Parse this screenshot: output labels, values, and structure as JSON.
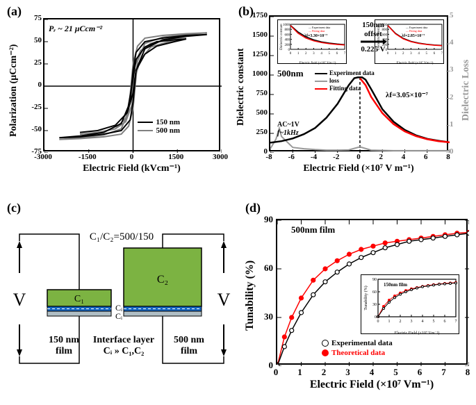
{
  "panel_a": {
    "label": "(a)",
    "xlabel": "Electric Field (kVcm⁻¹)",
    "ylabel": "Polarization (μCcm⁻²)",
    "xlim": [
      -3000,
      3000
    ],
    "xticks": [
      -3000,
      -1500,
      0,
      1500,
      3000
    ],
    "ylim": [
      -75,
      75
    ],
    "yticks": [
      -75,
      -50,
      -25,
      0,
      25,
      50,
      75
    ],
    "anno": "Pᵣ ~ 21 μCcm⁻²",
    "legend": [
      "150 nm",
      "500 nm"
    ],
    "colors": {
      "150nm": "#000000",
      "500nm": "#808080"
    },
    "loops": {
      "150nm_outer": [
        [
          -2500,
          -58
        ],
        [
          -1800,
          -56
        ],
        [
          -1000,
          -52
        ],
        [
          -400,
          -42
        ],
        [
          -100,
          -18
        ],
        [
          0,
          18
        ],
        [
          100,
          38
        ],
        [
          400,
          50
        ],
        [
          1000,
          54
        ],
        [
          1800,
          57
        ],
        [
          2500,
          58
        ],
        [
          2500,
          58
        ],
        [
          1800,
          56
        ],
        [
          1000,
          52
        ],
        [
          400,
          42
        ],
        [
          100,
          18
        ],
        [
          0,
          -18
        ],
        [
          -100,
          -38
        ],
        [
          -400,
          -50
        ],
        [
          -1000,
          -54
        ],
        [
          -1800,
          -57
        ],
        [
          -2500,
          -58
        ]
      ],
      "150nm_inner": [
        [
          -1800,
          -52
        ],
        [
          -1200,
          -50
        ],
        [
          -600,
          -44
        ],
        [
          -200,
          -30
        ],
        [
          0,
          8
        ],
        [
          100,
          30
        ],
        [
          400,
          44
        ],
        [
          800,
          50
        ],
        [
          1400,
          52
        ],
        [
          1800,
          53
        ],
        [
          1400,
          50
        ],
        [
          800,
          45
        ],
        [
          400,
          36
        ],
        [
          100,
          18
        ],
        [
          0,
          -8
        ],
        [
          -200,
          -30
        ],
        [
          -600,
          -44
        ],
        [
          -1200,
          -50
        ],
        [
          -1800,
          -52
        ]
      ],
      "500nm_outer": [
        [
          -2500,
          -60
        ],
        [
          -1800,
          -58
        ],
        [
          -1000,
          -55
        ],
        [
          -400,
          -48
        ],
        [
          -150,
          -28
        ],
        [
          0,
          25
        ],
        [
          150,
          45
        ],
        [
          400,
          54
        ],
        [
          1000,
          57
        ],
        [
          1800,
          59
        ],
        [
          2500,
          60
        ],
        [
          1800,
          58
        ],
        [
          1000,
          55
        ],
        [
          400,
          48
        ],
        [
          150,
          28
        ],
        [
          0,
          -25
        ],
        [
          -150,
          -45
        ],
        [
          -400,
          -54
        ],
        [
          -1000,
          -57
        ],
        [
          -1800,
          -59
        ],
        [
          -2500,
          -60
        ]
      ],
      "500nm_inner": [
        [
          -1800,
          -54
        ],
        [
          -1200,
          -52
        ],
        [
          -600,
          -48
        ],
        [
          -250,
          -36
        ],
        [
          -50,
          -8
        ],
        [
          50,
          22
        ],
        [
          250,
          40
        ],
        [
          600,
          48
        ],
        [
          1200,
          52
        ],
        [
          1800,
          54
        ],
        [
          1200,
          50
        ],
        [
          600,
          44
        ],
        [
          250,
          30
        ],
        [
          50,
          8
        ],
        [
          -50,
          -22
        ],
        [
          -250,
          -40
        ],
        [
          -600,
          -48
        ],
        [
          -1200,
          -52
        ],
        [
          -1800,
          -54
        ]
      ]
    },
    "label_fontsize": 14
  },
  "panel_b": {
    "label": "(b)",
    "xlabel": "Electric Field (×10⁷ V m⁻¹)",
    "ylabel_left": "Dielectric constant",
    "ylabel_right": "Dielectric Loss",
    "xlim": [
      -8,
      8
    ],
    "xticks": [
      -8,
      -6,
      -4,
      -2,
      0,
      2,
      4,
      6,
      8
    ],
    "ylim_left": [
      0,
      1750
    ],
    "yticks_left": [
      0,
      250,
      500,
      750,
      1000,
      1250,
      1500,
      1750
    ],
    "ylim_right": [
      0,
      5
    ],
    "yticks_right": [
      0,
      1,
      2,
      3,
      4,
      5
    ],
    "colors": {
      "exp": "#000000",
      "loss": "#999999",
      "fit": "#ff0000"
    },
    "anno_500": "500nm",
    "anno_AC": "AC~1V",
    "anno_f": "f~1kHz",
    "anno_offset_top": "150nm",
    "anno_offset_mid": "offset",
    "anno_offset_bot": "0.225 V",
    "anno_lambda": "λf=3.05×10⁻⁷",
    "legend": [
      "Experiment data",
      "loss",
      "Fitting data"
    ],
    "exp_curve": [
      [
        -8,
        130
      ],
      [
        -7,
        150
      ],
      [
        -6,
        185
      ],
      [
        -5,
        240
      ],
      [
        -4,
        320
      ],
      [
        -3,
        450
      ],
      [
        -2,
        630
      ],
      [
        -1,
        870
      ],
      [
        -0.5,
        960
      ],
      [
        -0.2,
        970
      ],
      [
        0.2,
        970
      ],
      [
        0.5,
        940
      ],
      [
        1,
        820
      ],
      [
        2,
        560
      ],
      [
        3,
        400
      ],
      [
        4,
        295
      ],
      [
        5,
        225
      ],
      [
        6,
        180
      ],
      [
        7,
        155
      ],
      [
        8,
        135
      ]
    ],
    "fit_curve": [
      [
        0,
        960
      ],
      [
        0.5,
        870
      ],
      [
        1,
        720
      ],
      [
        2,
        510
      ],
      [
        3,
        370
      ],
      [
        4,
        275
      ],
      [
        5,
        215
      ],
      [
        6,
        175
      ],
      [
        7,
        150
      ],
      [
        8,
        135
      ]
    ],
    "loss_curve": [
      [
        -8,
        0.15
      ],
      [
        -7.5,
        0.5
      ],
      [
        -7.2,
        0.9
      ],
      [
        -7,
        0.6
      ],
      [
        -6,
        0.2
      ],
      [
        -5,
        0.15
      ],
      [
        -4,
        0.12
      ],
      [
        -3,
        0.1
      ],
      [
        -2,
        0.1
      ],
      [
        -1,
        0.11
      ],
      [
        0,
        0.22
      ],
      [
        1,
        0.1
      ],
      [
        2,
        0.09
      ],
      [
        3,
        0.08
      ],
      [
        4,
        0.08
      ],
      [
        5,
        0.08
      ],
      [
        6,
        0.08
      ],
      [
        7,
        0.08
      ],
      [
        8,
        0.08
      ]
    ],
    "inset_left": {
      "xlabel": "Electric field (×10⁷ Vm⁻¹)",
      "ylabel": "Dielectric constant",
      "lambda": "λf=3.30×10⁻⁷",
      "legend": [
        "Experiment data",
        "Fitting data"
      ],
      "xticks": [
        0,
        1,
        2,
        3,
        4,
        5,
        6,
        7
      ],
      "yticks": [
        0,
        200,
        400,
        600,
        800,
        1000
      ],
      "exp": [
        [
          0,
          960
        ],
        [
          1,
          690
        ],
        [
          2,
          500
        ],
        [
          3,
          380
        ],
        [
          4,
          300
        ],
        [
          5,
          250
        ],
        [
          6,
          215
        ],
        [
          7,
          190
        ]
      ],
      "fit": [
        [
          0,
          950
        ],
        [
          1,
          640
        ],
        [
          2,
          450
        ],
        [
          3,
          340
        ],
        [
          4,
          270
        ],
        [
          5,
          225
        ],
        [
          6,
          195
        ],
        [
          7,
          175
        ]
      ]
    },
    "inset_right": {
      "xlabel": "Electric field (×10⁷ Vm⁻¹)",
      "ylabel": "Dielectric constant",
      "lambda": "λf=2.85×10⁻⁷",
      "legend": [
        "Experiment data",
        "Fitting data"
      ],
      "xticks": [
        0,
        1,
        2,
        3,
        4,
        5,
        6,
        7
      ],
      "yticks": [
        0,
        200,
        400,
        600,
        800,
        1000
      ],
      "exp": [
        [
          0,
          960
        ],
        [
          1,
          640
        ],
        [
          2,
          440
        ],
        [
          3,
          320
        ],
        [
          4,
          250
        ],
        [
          5,
          205
        ],
        [
          6,
          175
        ],
        [
          7,
          155
        ]
      ],
      "fit": [
        [
          0,
          950
        ],
        [
          1,
          620
        ],
        [
          2,
          420
        ],
        [
          3,
          305
        ],
        [
          4,
          235
        ],
        [
          5,
          195
        ],
        [
          6,
          165
        ],
        [
          7,
          148
        ]
      ]
    }
  },
  "panel_c": {
    "label": "(c)",
    "ratio": "C₁/C₂=500/150",
    "C1": "C₁",
    "C2": "C₂",
    "Ci": "Cᵢ",
    "interface": "Interface layer",
    "interface2": "Cᵢ » C₁,C₂",
    "left_film": "150 nm",
    "left_film2": "film",
    "right_film": "500 nm",
    "right_film2": "film",
    "V": "V",
    "colors": {
      "cap": "#7cb342",
      "interface_top": "#1565c0",
      "interface_bot": "#ffffff",
      "border": "#000"
    }
  },
  "panel_d": {
    "label": "(d)",
    "xlabel": "Electric Field (×10⁷ Vm⁻¹)",
    "ylabel": "Tunability (%)",
    "xlim": [
      0,
      8
    ],
    "xticks": [
      0,
      1,
      2,
      3,
      4,
      5,
      6,
      7,
      8
    ],
    "ylim": [
      0,
      90
    ],
    "yticks": [
      0,
      30,
      60,
      90
    ],
    "anno_film": "500nm  film",
    "legend": [
      "Experimental data",
      "Theoretical data"
    ],
    "colors": {
      "exp": "#000000",
      "theo": "#ff0000"
    },
    "exp": [
      [
        0,
        0
      ],
      [
        0.3,
        12
      ],
      [
        0.6,
        22
      ],
      [
        1,
        33
      ],
      [
        1.5,
        44
      ],
      [
        2,
        52
      ],
      [
        2.5,
        58
      ],
      [
        3,
        63
      ],
      [
        3.5,
        67
      ],
      [
        4,
        70
      ],
      [
        4.5,
        73
      ],
      [
        5,
        75
      ],
      [
        5.5,
        77
      ],
      [
        6,
        78
      ],
      [
        6.5,
        79
      ],
      [
        7,
        80
      ],
      [
        7.5,
        81
      ],
      [
        8,
        82
      ]
    ],
    "theo": [
      [
        0,
        0
      ],
      [
        0.3,
        18
      ],
      [
        0.6,
        30
      ],
      [
        1,
        42
      ],
      [
        1.5,
        53
      ],
      [
        2,
        60
      ],
      [
        2.5,
        65
      ],
      [
        3,
        69
      ],
      [
        3.5,
        72
      ],
      [
        4,
        74
      ],
      [
        4.5,
        76
      ],
      [
        5,
        77
      ],
      [
        5.5,
        78
      ],
      [
        6,
        79
      ],
      [
        6.5,
        80
      ],
      [
        7,
        81
      ],
      [
        7.5,
        82
      ],
      [
        8,
        82.5
      ]
    ],
    "inset": {
      "anno": "150nm film",
      "xlabel": "Electric Field (×10⁷ Vm⁻¹)",
      "ylabel": "Tunability (%)",
      "xticks": [
        0,
        1,
        2,
        3,
        4,
        5,
        6,
        7
      ],
      "yticks": [
        0,
        30,
        60,
        90
      ],
      "exp": [
        [
          0,
          0
        ],
        [
          0.5,
          20
        ],
        [
          1,
          35
        ],
        [
          1.5,
          46
        ],
        [
          2,
          54
        ],
        [
          2.5,
          60
        ],
        [
          3,
          65
        ],
        [
          3.5,
          69
        ],
        [
          4,
          72
        ],
        [
          4.5,
          74
        ],
        [
          5,
          76
        ],
        [
          5.5,
          78
        ],
        [
          6,
          79
        ],
        [
          6.5,
          80
        ],
        [
          7,
          81
        ]
      ],
      "theo": [
        [
          0,
          0
        ],
        [
          0.5,
          25
        ],
        [
          1,
          40
        ],
        [
          1.5,
          50
        ],
        [
          2,
          57
        ],
        [
          2.5,
          63
        ],
        [
          3,
          67
        ],
        [
          3.5,
          70
        ],
        [
          4,
          73
        ],
        [
          4.5,
          75
        ],
        [
          5,
          77
        ],
        [
          5.5,
          78.5
        ],
        [
          6,
          80
        ],
        [
          6.5,
          81
        ],
        [
          7,
          82
        ]
      ]
    }
  }
}
